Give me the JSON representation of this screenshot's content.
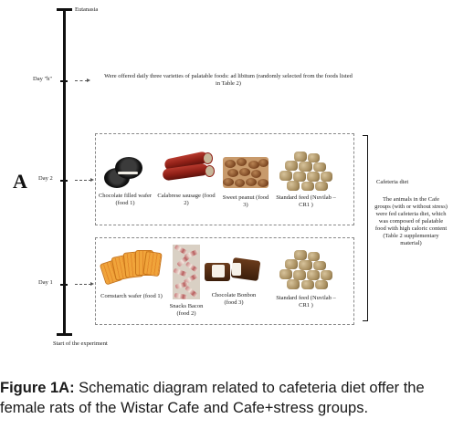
{
  "panel_letter": "A",
  "timeline": {
    "top_label": "Eutanasia",
    "day_h_label": "Day \"h\"",
    "day2_label": "Day 2",
    "day1_label": "Day 1",
    "bottom_label": "Start of the experiment"
  },
  "offer_note": "Were offered daily three varieties of palatable foods: ad libitum (randomly selected from the foods listed in Table 2)",
  "day2_foods": [
    {
      "label": "Chocolate filled wafer (food 1)"
    },
    {
      "label": "Calabrese sausage (food 2)"
    },
    {
      "label": "Sweet peanut (food 3)"
    },
    {
      "label": "Standard feed (Nuvilab – CR1 )"
    }
  ],
  "day1_foods": [
    {
      "label": "Cornstarch wafer (food 1)"
    },
    {
      "label": "Snacks Bacon (food 2)"
    },
    {
      "label": "Chocolate Bonbon (food 3)"
    },
    {
      "label": "Standard feed (Nuvilab – CR1 )"
    }
  ],
  "cafeteria": {
    "title": "Cafeteria diet",
    "description": "The animals in the Cafe groups (with or without stress) were fed cafeteria diet, which was composed of palatable food with high caloric content (Table 2 supplementary material)"
  },
  "caption": {
    "prefix": "Figure 1A:",
    "text": " Schematic diagram related to cafeteria diet offer the female rats of the Wistar Cafe and Cafe+stress groups."
  }
}
